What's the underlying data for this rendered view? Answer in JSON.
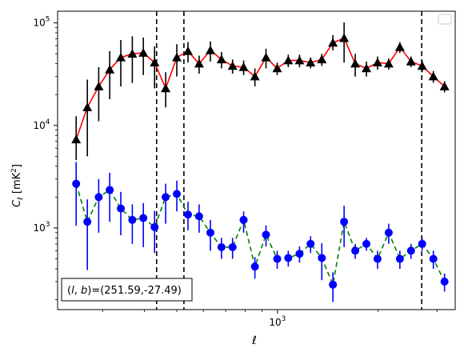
{
  "chart_data": {
    "type": "scatter",
    "xlabel": "ℓ",
    "ylabel_main": "C",
    "ylabel_sub": "ℓ",
    "ylabel_unit": "[mK",
    "ylabel_unit_sup": "2",
    "ylabel_unit_close": "]",
    "x_scale": "log",
    "y_scale": "log",
    "xlim": [
      220,
      3400
    ],
    "ylim": [
      160,
      130000
    ],
    "x_tick_major": [
      {
        "value": 1000,
        "base": "10",
        "exp": "3"
      }
    ],
    "y_tick_major": [
      {
        "value": 1000,
        "base": "10",
        "exp": "3"
      },
      {
        "value": 10000,
        "base": "10",
        "exp": "4"
      },
      {
        "value": 100000,
        "base": "10",
        "exp": "5"
      }
    ],
    "legend": {
      "placement": "top-right",
      "entries": []
    },
    "annotation": "(l, b)=(251.59,-27.49)",
    "annotation_parts": {
      "open": "(",
      "l": "l",
      "comma": ", ",
      "b": "b",
      "close": ")",
      "value": "=(251.59,-27.49)"
    },
    "vlines_x": [
      435,
      525,
      2700
    ],
    "series": [
      {
        "color": "#000000",
        "line_color": "#ff0000",
        "line_style": "solid",
        "marker": "triangle",
        "x": [
          250,
          270,
          292,
          315,
          340,
          368,
          397,
          429,
          463,
          500,
          540,
          583,
          630,
          680,
          734,
          792,
          856,
          924,
          998,
          1077,
          1164,
          1256,
          1357,
          1465,
          1582,
          1708,
          1845,
          1992,
          2151,
          2323,
          2508,
          2708,
          2925,
          3159
        ],
        "y": [
          7300,
          15000,
          24000,
          35000,
          46000,
          50000,
          51000,
          41000,
          23000,
          46000,
          53000,
          40000,
          54000,
          44000,
          38000,
          37000,
          30000,
          46000,
          36000,
          43000,
          43000,
          41000,
          44000,
          64000,
          71000,
          40000,
          36000,
          41000,
          40000,
          58000,
          42000,
          38000,
          30000,
          24000
        ],
        "err_low": [
          2700,
          10000,
          13000,
          17000,
          22000,
          24000,
          20000,
          18000,
          8000,
          16000,
          12000,
          8000,
          12000,
          8000,
          6000,
          6000,
          6000,
          10000,
          5000,
          6000,
          6000,
          5000,
          6000,
          10000,
          30000,
          10000,
          6000,
          6000,
          5000,
          7000,
          5000,
          5000,
          4000,
          3000
        ],
        "err_high": [
          5000,
          13000,
          13000,
          18000,
          22000,
          24000,
          21000,
          18000,
          10000,
          16000,
          12000,
          8000,
          12000,
          8000,
          6000,
          6000,
          6000,
          10000,
          5000,
          6000,
          6000,
          5000,
          6000,
          12000,
          30000,
          10000,
          6000,
          6000,
          5000,
          7000,
          5000,
          5000,
          4000,
          3000
        ]
      },
      {
        "color": "#0000ff",
        "line_color": "#008000",
        "line_style": "dashed",
        "marker": "circle",
        "x": [
          250,
          270,
          292,
          315,
          340,
          368,
          397,
          429,
          463,
          500,
          540,
          583,
          630,
          680,
          734,
          792,
          856,
          924,
          998,
          1077,
          1164,
          1256,
          1357,
          1465,
          1582,
          1708,
          1845,
          1992,
          2151,
          2323,
          2508,
          2708,
          2925,
          3159
        ],
        "y": [
          2700,
          1150,
          2000,
          2350,
          1550,
          1200,
          1250,
          1020,
          2000,
          2150,
          1350,
          1300,
          900,
          650,
          650,
          1200,
          420,
          860,
          500,
          510,
          560,
          700,
          510,
          280,
          1150,
          600,
          700,
          500,
          900,
          500,
          600,
          700,
          500,
          300
        ],
        "err_low": [
          1650,
          760,
          1100,
          1200,
          700,
          500,
          600,
          450,
          900,
          700,
          400,
          400,
          300,
          150,
          150,
          300,
          100,
          200,
          100,
          90,
          100,
          130,
          200,
          90,
          500,
          100,
          100,
          100,
          200,
          100,
          100,
          100,
          100,
          60
        ],
        "err_high": [
          1700,
          750,
          1000,
          1100,
          700,
          500,
          500,
          450,
          700,
          750,
          450,
          400,
          300,
          150,
          150,
          250,
          100,
          200,
          100,
          90,
          100,
          130,
          200,
          90,
          500,
          100,
          100,
          100,
          200,
          100,
          100,
          100,
          100,
          60
        ]
      }
    ]
  }
}
